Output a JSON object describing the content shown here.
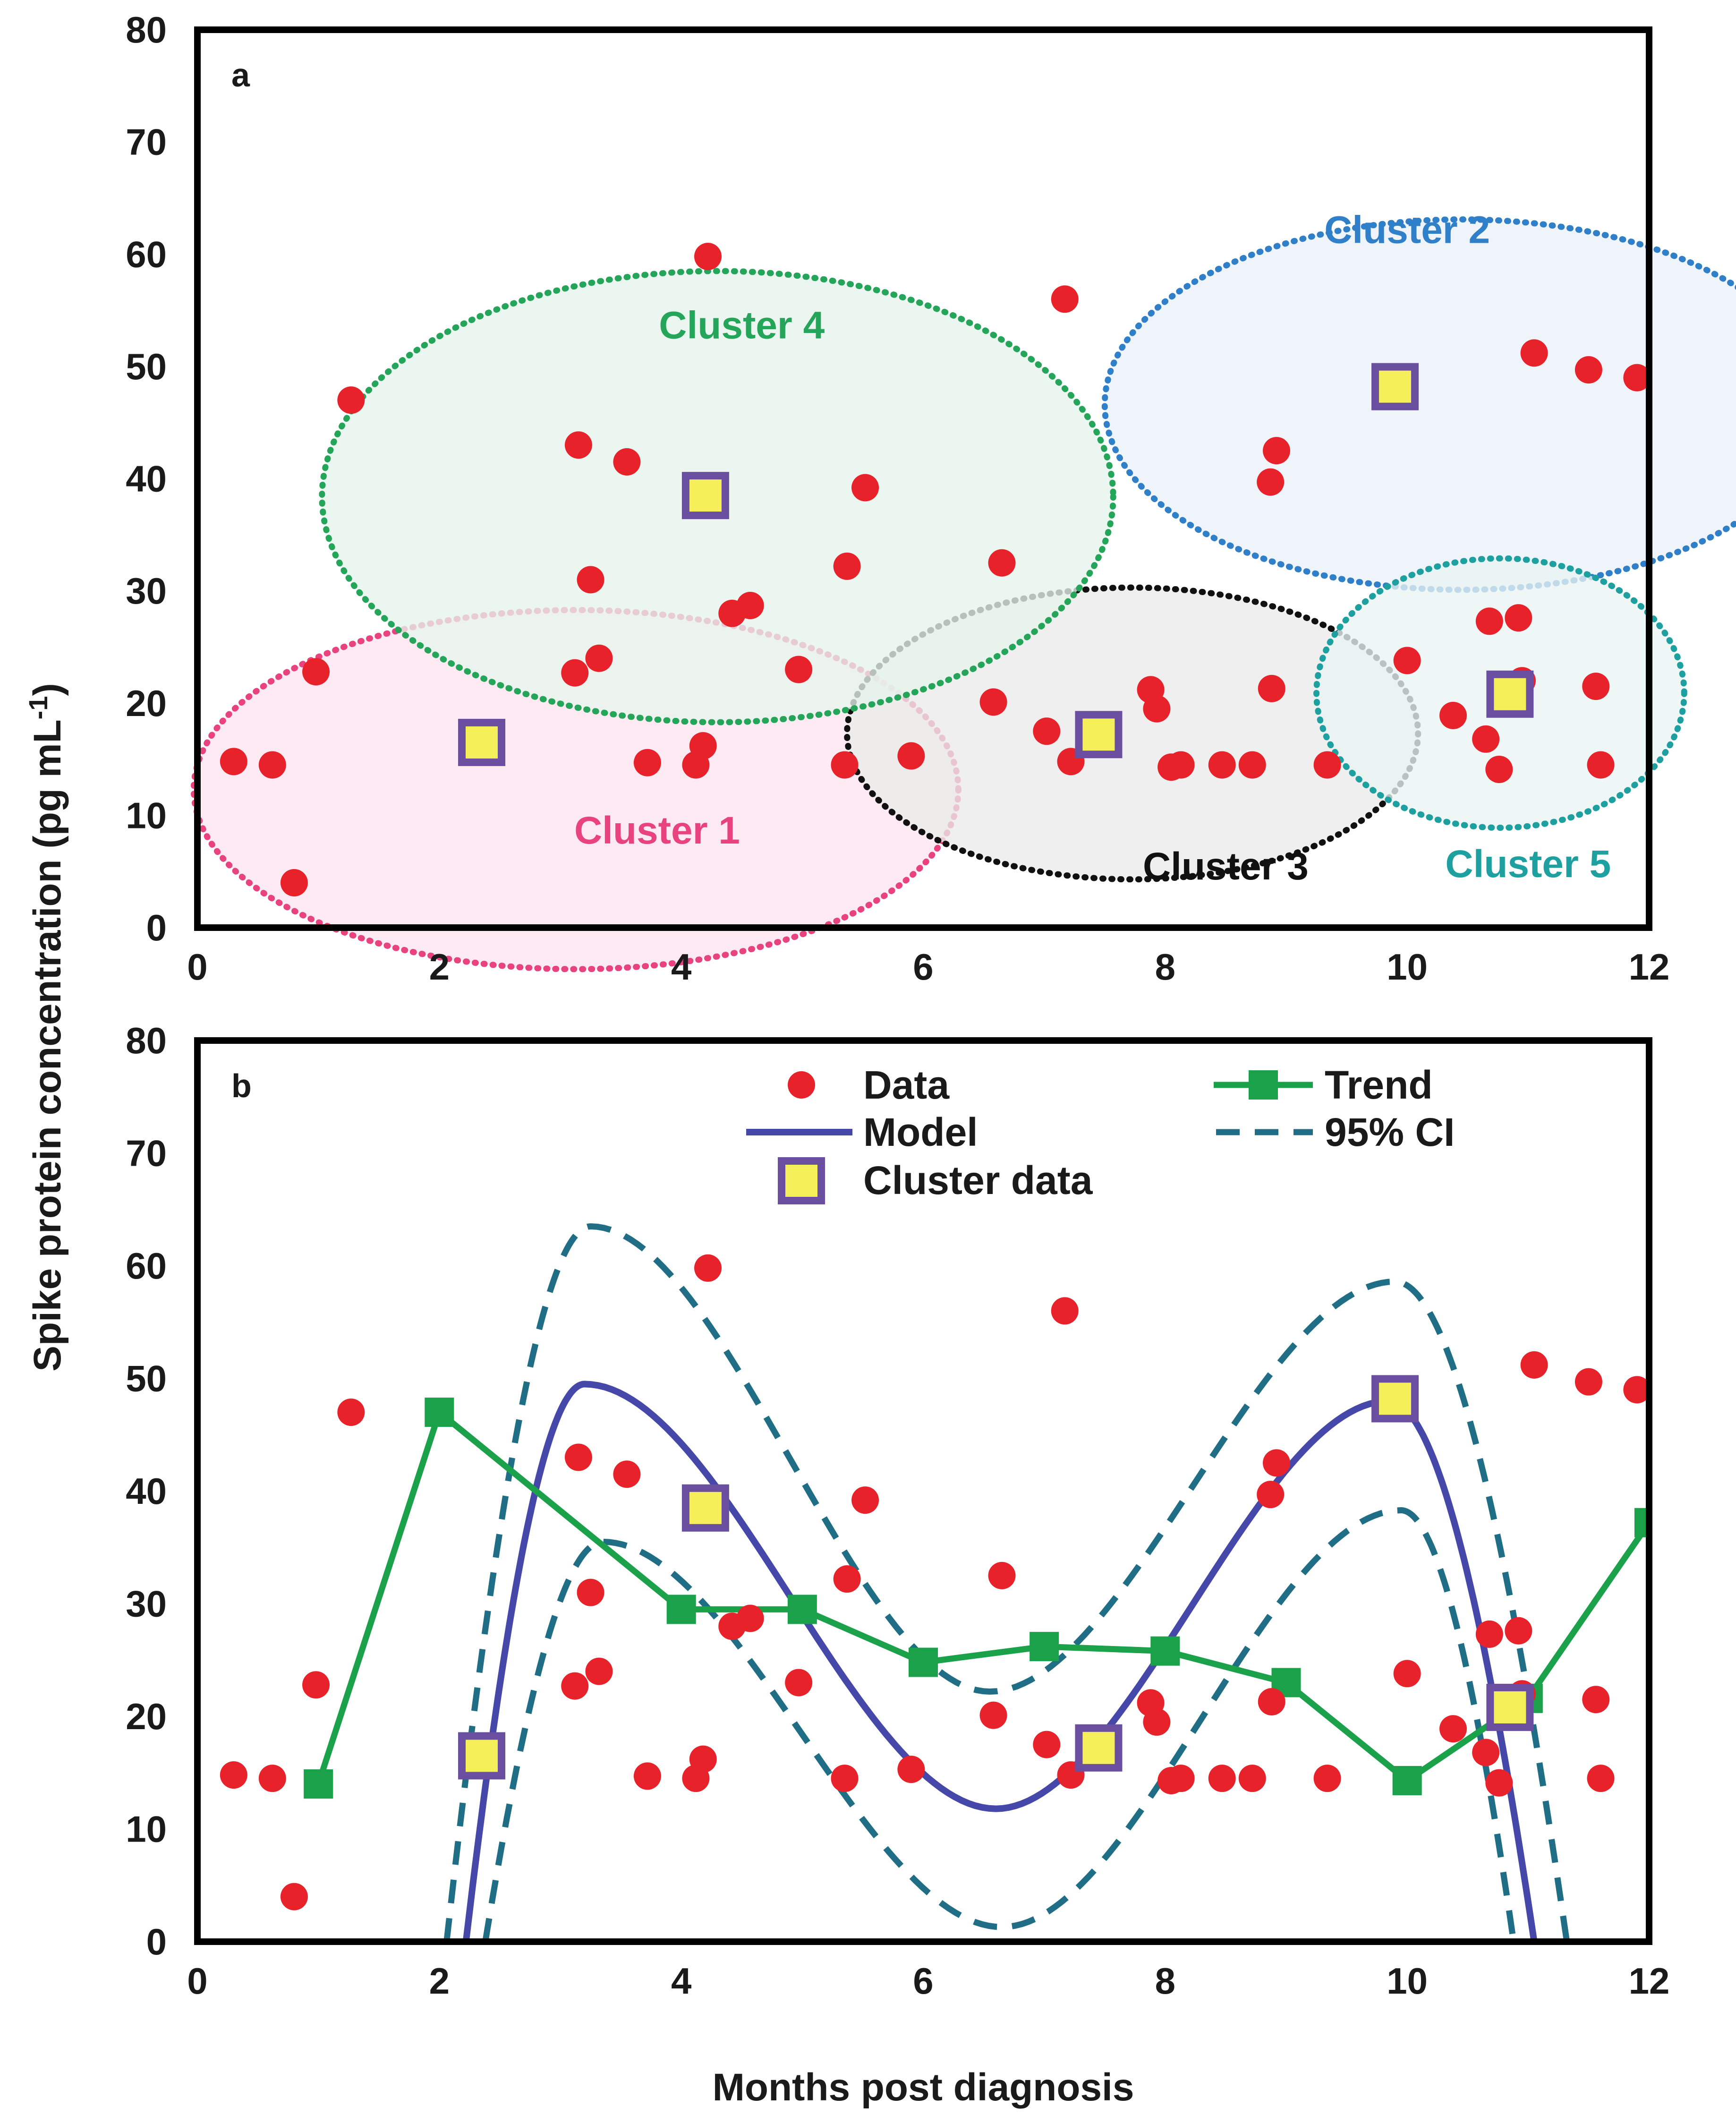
{
  "chart_data": {
    "type": "scatter",
    "xlabel": "Months post diagnosis",
    "ylabel": "Spike protein concentration (pg mL",
    "ylabel_sup": "-1",
    "ylabel_tail": ")",
    "xlim": [
      0,
      12
    ],
    "ylim": [
      0,
      80
    ],
    "x_ticks": [
      "0",
      "2",
      "4",
      "6",
      "8",
      "10",
      "12"
    ],
    "y_ticks": [
      "0",
      "10",
      "20",
      "30",
      "40",
      "50",
      "60",
      "70",
      "80"
    ],
    "colors": {
      "data": "#e8222a",
      "cluster_fill": "#f5ef5a",
      "cluster_edge": "#6a4fa0",
      "model": "#4548a8",
      "ci": "#1f6e86",
      "trend": "#1aa14a",
      "c1": "#e8427f",
      "c2": "#2f7fc9",
      "c3": "#111111",
      "c4": "#25a55a",
      "c5": "#1fa0a0"
    },
    "data_points": [
      [
        0.3,
        14.8
      ],
      [
        0.62,
        14.5
      ],
      [
        0.8,
        4.0
      ],
      [
        0.98,
        22.8
      ],
      [
        1.27,
        47.0
      ],
      [
        3.12,
        22.7
      ],
      [
        3.15,
        43.0
      ],
      [
        3.25,
        31.0
      ],
      [
        3.32,
        24.0
      ],
      [
        3.55,
        41.5
      ],
      [
        3.72,
        14.7
      ],
      [
        4.12,
        14.5
      ],
      [
        4.18,
        16.2
      ],
      [
        4.22,
        59.8
      ],
      [
        4.42,
        28.0
      ],
      [
        4.57,
        28.7
      ],
      [
        4.97,
        23.0
      ],
      [
        5.35,
        14.5
      ],
      [
        5.37,
        32.2
      ],
      [
        5.52,
        39.2
      ],
      [
        5.9,
        15.3
      ],
      [
        6.58,
        20.1
      ],
      [
        6.65,
        32.5
      ],
      [
        7.02,
        17.5
      ],
      [
        7.17,
        56.0
      ],
      [
        7.22,
        14.8
      ],
      [
        7.88,
        21.2
      ],
      [
        7.93,
        19.5
      ],
      [
        8.05,
        14.3
      ],
      [
        8.13,
        14.5
      ],
      [
        8.47,
        14.5
      ],
      [
        8.72,
        14.5
      ],
      [
        8.87,
        39.7
      ],
      [
        8.88,
        21.3
      ],
      [
        8.92,
        42.5
      ],
      [
        9.34,
        14.5
      ],
      [
        10.0,
        23.8
      ],
      [
        10.38,
        18.9
      ],
      [
        10.65,
        16.8
      ],
      [
        10.68,
        27.3
      ],
      [
        10.76,
        14.1
      ],
      [
        10.92,
        27.6
      ],
      [
        10.95,
        22.0
      ],
      [
        11.05,
        51.2
      ],
      [
        11.5,
        49.7
      ],
      [
        11.56,
        21.5
      ],
      [
        11.6,
        14.5
      ],
      [
        11.9,
        49.0
      ]
    ],
    "cluster_data": [
      [
        2.35,
        16.5
      ],
      [
        4.2,
        38.5
      ],
      [
        7.45,
        17.2
      ],
      [
        9.9,
        48.2
      ],
      [
        10.85,
        20.8
      ]
    ],
    "trend": [
      [
        1,
        14
      ],
      [
        2,
        47
      ],
      [
        4,
        29.5
      ],
      [
        5,
        29.5
      ],
      [
        6,
        24.8
      ],
      [
        7,
        26.2
      ],
      [
        8,
        25.8
      ],
      [
        9,
        23.0
      ],
      [
        10,
        14.3
      ],
      [
        11,
        21.6
      ],
      [
        12,
        37.2
      ]
    ],
    "clusters": [
      {
        "label": "Cluster 1",
        "color_key": "c1",
        "center": [
          3.13,
          12.3
        ],
        "rx": 3.16,
        "ry": 16.0,
        "fill": "#fce4ee"
      },
      {
        "label": "Cluster 2",
        "color_key": "c2",
        "center": [
          10.45,
          46.6
        ],
        "rx": 2.95,
        "ry": 16.5,
        "fill": "#e9f1f8"
      },
      {
        "label": "Cluster 3",
        "color_key": "c3",
        "center": [
          7.73,
          17.3
        ],
        "rx": 2.36,
        "ry": 13.0,
        "fill": "#e9ebe9"
      },
      {
        "label": "Cluster 4",
        "color_key": "c4",
        "center": [
          4.3,
          38.4
        ],
        "rx": 3.27,
        "ry": 20.1,
        "fill": "#e7f3ec"
      },
      {
        "label": "Cluster 5",
        "color_key": "c5",
        "center": [
          10.77,
          20.9
        ],
        "rx": 1.52,
        "ry": 12.0,
        "fill": "#e9f4f4"
      }
    ],
    "cluster_label_positions": [
      {
        "text": "Cluster 1",
        "x": 3.8,
        "y": 7.5
      },
      {
        "text": "Cluster 2",
        "x": 10.0,
        "y": 61.0
      },
      {
        "text": "Cluster 3",
        "x": 8.5,
        "y": 4.3
      },
      {
        "text": "Cluster 4",
        "x": 4.5,
        "y": 52.5
      },
      {
        "text": "Cluster 5",
        "x": 11.0,
        "y": 4.5
      }
    ],
    "panels": [
      {
        "letter": "a",
        "content": "clusters"
      },
      {
        "letter": "b",
        "content": "model"
      }
    ],
    "legend": {
      "data": "Data",
      "model": "Model",
      "cluster_data": "Cluster data",
      "trend": "Trend",
      "ci": "95% CI"
    },
    "model_fit": {
      "description": "rational peak model between cluster centres",
      "domain": [
        2.22,
        11.05
      ],
      "anchors": [
        [
          2.22,
          0
        ],
        [
          3.2,
          49.5
        ],
        [
          6.6,
          11.8
        ],
        [
          9.85,
          48.0
        ],
        [
          11.05,
          0
        ]
      ]
    },
    "ci_upper": {
      "domain": [
        2.06,
        11.32
      ],
      "anchors": [
        [
          2.06,
          0
        ],
        [
          3.25,
          63.5
        ],
        [
          6.55,
          22.2
        ],
        [
          9.9,
          58.6
        ],
        [
          11.32,
          0
        ]
      ]
    },
    "ci_lower": {
      "domain": [
        2.38,
        10.88
      ],
      "anchors": [
        [
          2.38,
          0
        ],
        [
          3.35,
          35.5
        ],
        [
          6.65,
          1.3
        ],
        [
          9.95,
          38.3
        ],
        [
          10.88,
          0
        ]
      ]
    }
  }
}
